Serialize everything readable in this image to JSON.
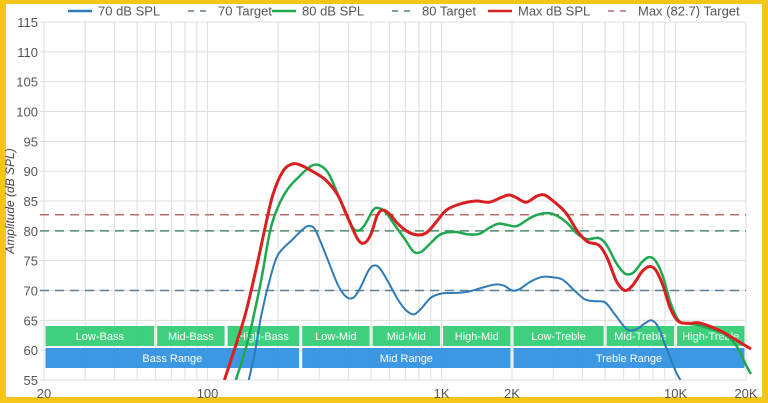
{
  "chart_data": {
    "type": "line",
    "title": "",
    "xlabel": "",
    "ylabel": "Amplitude (dB SPL)",
    "xscale": "log",
    "xlim": [
      20,
      20000
    ],
    "ylim": [
      55,
      115
    ],
    "grid": true,
    "legend_position": "top",
    "y_ticks": [
      55,
      60,
      65,
      70,
      75,
      80,
      85,
      90,
      95,
      100,
      105,
      110,
      115
    ],
    "x_ticks": [
      {
        "value": 20,
        "label": "20"
      },
      {
        "value": 100,
        "label": "100"
      },
      {
        "value": 1000,
        "label": "1K"
      },
      {
        "value": 2000,
        "label": "2K"
      },
      {
        "value": 10000,
        "label": "10K"
      },
      {
        "value": 20000,
        "label": "20K"
      }
    ],
    "legend": [
      {
        "label": "70 dB SPL",
        "color": "#2e7bb8",
        "style": "solid"
      },
      {
        "label": "70 Target",
        "color": "#5a7f96",
        "style": "dashed"
      },
      {
        "label": "80 dB SPL",
        "color": "#1fa84f",
        "style": "solid"
      },
      {
        "label": "80 Target",
        "color": "#4f8a6e",
        "style": "dashed"
      },
      {
        "label": "Max dB SPL",
        "color": "#d92020",
        "style": "solid"
      },
      {
        "label": "Max (82.7) Target",
        "color": "#b86f6f",
        "style": "dashed"
      }
    ],
    "targets": [
      {
        "name": "70 Target",
        "value": 70,
        "color": "#5a7f96"
      },
      {
        "name": "80 Target",
        "value": 80,
        "color": "#4f8a6e"
      },
      {
        "name": "Max (82.7) Target",
        "value": 82.7,
        "color": "#b86f6f"
      }
    ],
    "series": [
      {
        "name": "70 dB SPL",
        "color": "#2e7bb8",
        "width": 2,
        "points": [
          [
            150,
            55
          ],
          [
            160,
            60
          ],
          [
            170,
            66
          ],
          [
            185,
            72
          ],
          [
            200,
            76
          ],
          [
            230,
            78.5
          ],
          [
            260,
            80.5
          ],
          [
            275,
            80.8
          ],
          [
            290,
            80
          ],
          [
            320,
            76
          ],
          [
            360,
            71
          ],
          [
            390,
            69
          ],
          [
            420,
            68.8
          ],
          [
            450,
            70.5
          ],
          [
            490,
            73.5
          ],
          [
            520,
            74.2
          ],
          [
            550,
            73.5
          ],
          [
            600,
            71
          ],
          [
            650,
            68.5
          ],
          [
            700,
            66.8
          ],
          [
            760,
            66
          ],
          [
            820,
            67
          ],
          [
            900,
            68.8
          ],
          [
            1000,
            69.5
          ],
          [
            1150,
            69.6
          ],
          [
            1300,
            69.8
          ],
          [
            1500,
            70.5
          ],
          [
            1700,
            71
          ],
          [
            1850,
            70.8
          ],
          [
            2000,
            70
          ],
          [
            2150,
            70.2
          ],
          [
            2400,
            71.5
          ],
          [
            2700,
            72.3
          ],
          [
            3000,
            72.2
          ],
          [
            3300,
            71.8
          ],
          [
            3700,
            70
          ],
          [
            4100,
            68.5
          ],
          [
            4500,
            68.2
          ],
          [
            5000,
            68
          ],
          [
            5500,
            66
          ],
          [
            6200,
            63.5
          ],
          [
            6800,
            63.5
          ],
          [
            7400,
            64.5
          ],
          [
            7900,
            65
          ],
          [
            8400,
            64
          ],
          [
            9000,
            61
          ],
          [
            10000,
            56.5
          ],
          [
            10500,
            55
          ]
        ]
      },
      {
        "name": "80 dB SPL",
        "color": "#1fa84f",
        "width": 2.5,
        "points": [
          [
            132,
            55
          ],
          [
            145,
            60
          ],
          [
            158,
            66
          ],
          [
            170,
            72
          ],
          [
            185,
            80
          ],
          [
            200,
            84
          ],
          [
            220,
            87
          ],
          [
            245,
            89
          ],
          [
            275,
            90.8
          ],
          [
            300,
            91
          ],
          [
            330,
            89.5
          ],
          [
            370,
            85
          ],
          [
            410,
            81
          ],
          [
            440,
            80
          ],
          [
            470,
            81
          ],
          [
            510,
            83.5
          ],
          [
            540,
            83.8
          ],
          [
            580,
            83
          ],
          [
            630,
            81
          ],
          [
            700,
            78.5
          ],
          [
            760,
            76.5
          ],
          [
            820,
            76.5
          ],
          [
            900,
            78
          ],
          [
            1000,
            79.5
          ],
          [
            1150,
            79.8
          ],
          [
            1300,
            79.4
          ],
          [
            1450,
            79.5
          ],
          [
            1600,
            80.5
          ],
          [
            1750,
            81.2
          ],
          [
            1900,
            81
          ],
          [
            2100,
            80.8
          ],
          [
            2400,
            82.2
          ],
          [
            2700,
            82.9
          ],
          [
            3000,
            82.8
          ],
          [
            3400,
            81.5
          ],
          [
            3800,
            79.5
          ],
          [
            4200,
            78.6
          ],
          [
            4700,
            78.8
          ],
          [
            5100,
            77.5
          ],
          [
            5600,
            74.5
          ],
          [
            6100,
            72.8
          ],
          [
            6600,
            73
          ],
          [
            7200,
            74.8
          ],
          [
            7700,
            75.6
          ],
          [
            8200,
            75
          ],
          [
            8800,
            72.5
          ],
          [
            9500,
            68
          ],
          [
            10300,
            65
          ],
          [
            11000,
            64.5
          ],
          [
            12500,
            64.2
          ],
          [
            14000,
            63.6
          ],
          [
            16000,
            62.8
          ],
          [
            18000,
            61
          ],
          [
            20000,
            57.5
          ],
          [
            21000,
            56
          ]
        ]
      },
      {
        "name": "Max dB SPL",
        "color": "#d92020",
        "width": 3,
        "points": [
          [
            118,
            55
          ],
          [
            130,
            60
          ],
          [
            145,
            66
          ],
          [
            160,
            73
          ],
          [
            175,
            80
          ],
          [
            190,
            86
          ],
          [
            210,
            90
          ],
          [
            230,
            91.2
          ],
          [
            250,
            91
          ],
          [
            280,
            90
          ],
          [
            320,
            88.5
          ],
          [
            360,
            86
          ],
          [
            400,
            82
          ],
          [
            440,
            78.5
          ],
          [
            470,
            78
          ],
          [
            500,
            79.5
          ],
          [
            530,
            82.5
          ],
          [
            560,
            83.5
          ],
          [
            600,
            82.8
          ],
          [
            650,
            81.2
          ],
          [
            720,
            79.8
          ],
          [
            800,
            79.3
          ],
          [
            870,
            79.8
          ],
          [
            950,
            81.5
          ],
          [
            1050,
            83.5
          ],
          [
            1200,
            84.5
          ],
          [
            1400,
            85
          ],
          [
            1600,
            84.8
          ],
          [
            1800,
            85.6
          ],
          [
            1950,
            86
          ],
          [
            2100,
            85.5
          ],
          [
            2300,
            84.8
          ],
          [
            2550,
            85.8
          ],
          [
            2750,
            86
          ],
          [
            3000,
            85
          ],
          [
            3400,
            83
          ],
          [
            3800,
            80
          ],
          [
            4200,
            78.2
          ],
          [
            4700,
            77.6
          ],
          [
            5100,
            75.5
          ],
          [
            5600,
            71.5
          ],
          [
            6100,
            70
          ],
          [
            6600,
            71
          ],
          [
            7200,
            73.2
          ],
          [
            7700,
            74
          ],
          [
            8200,
            73.5
          ],
          [
            8800,
            71
          ],
          [
            9500,
            67
          ],
          [
            10300,
            64.8
          ],
          [
            11500,
            64.5
          ],
          [
            12500,
            64.6
          ],
          [
            14000,
            64
          ],
          [
            16000,
            63
          ],
          [
            18500,
            61.5
          ],
          [
            21000,
            60.2
          ]
        ]
      }
    ],
    "bands": {
      "sub_ranges": [
        {
          "label": "Low-Bass",
          "from": 20,
          "to": 60
        },
        {
          "label": "Mid-Bass",
          "from": 60,
          "to": 120
        },
        {
          "label": "High-Bass",
          "from": 120,
          "to": 250
        },
        {
          "label": "Low-Mid",
          "from": 250,
          "to": 500
        },
        {
          "label": "Mid-Mid",
          "from": 500,
          "to": 1000
        },
        {
          "label": "High-Mid",
          "from": 1000,
          "to": 2000
        },
        {
          "label": "Low-Treble",
          "from": 2000,
          "to": 5000
        },
        {
          "label": "Mid-Treble",
          "from": 5000,
          "to": 10000
        },
        {
          "label": "High-Treble",
          "from": 10000,
          "to": 20000
        }
      ],
      "ranges": [
        {
          "label": "Bass Range",
          "from": 20,
          "to": 250
        },
        {
          "label": "Mid Range",
          "from": 250,
          "to": 2000
        },
        {
          "label": "Treble Range",
          "from": 2000,
          "to": 20000
        }
      ],
      "sub_color": "#2ecc71",
      "range_color": "#2b8fe0"
    }
  }
}
